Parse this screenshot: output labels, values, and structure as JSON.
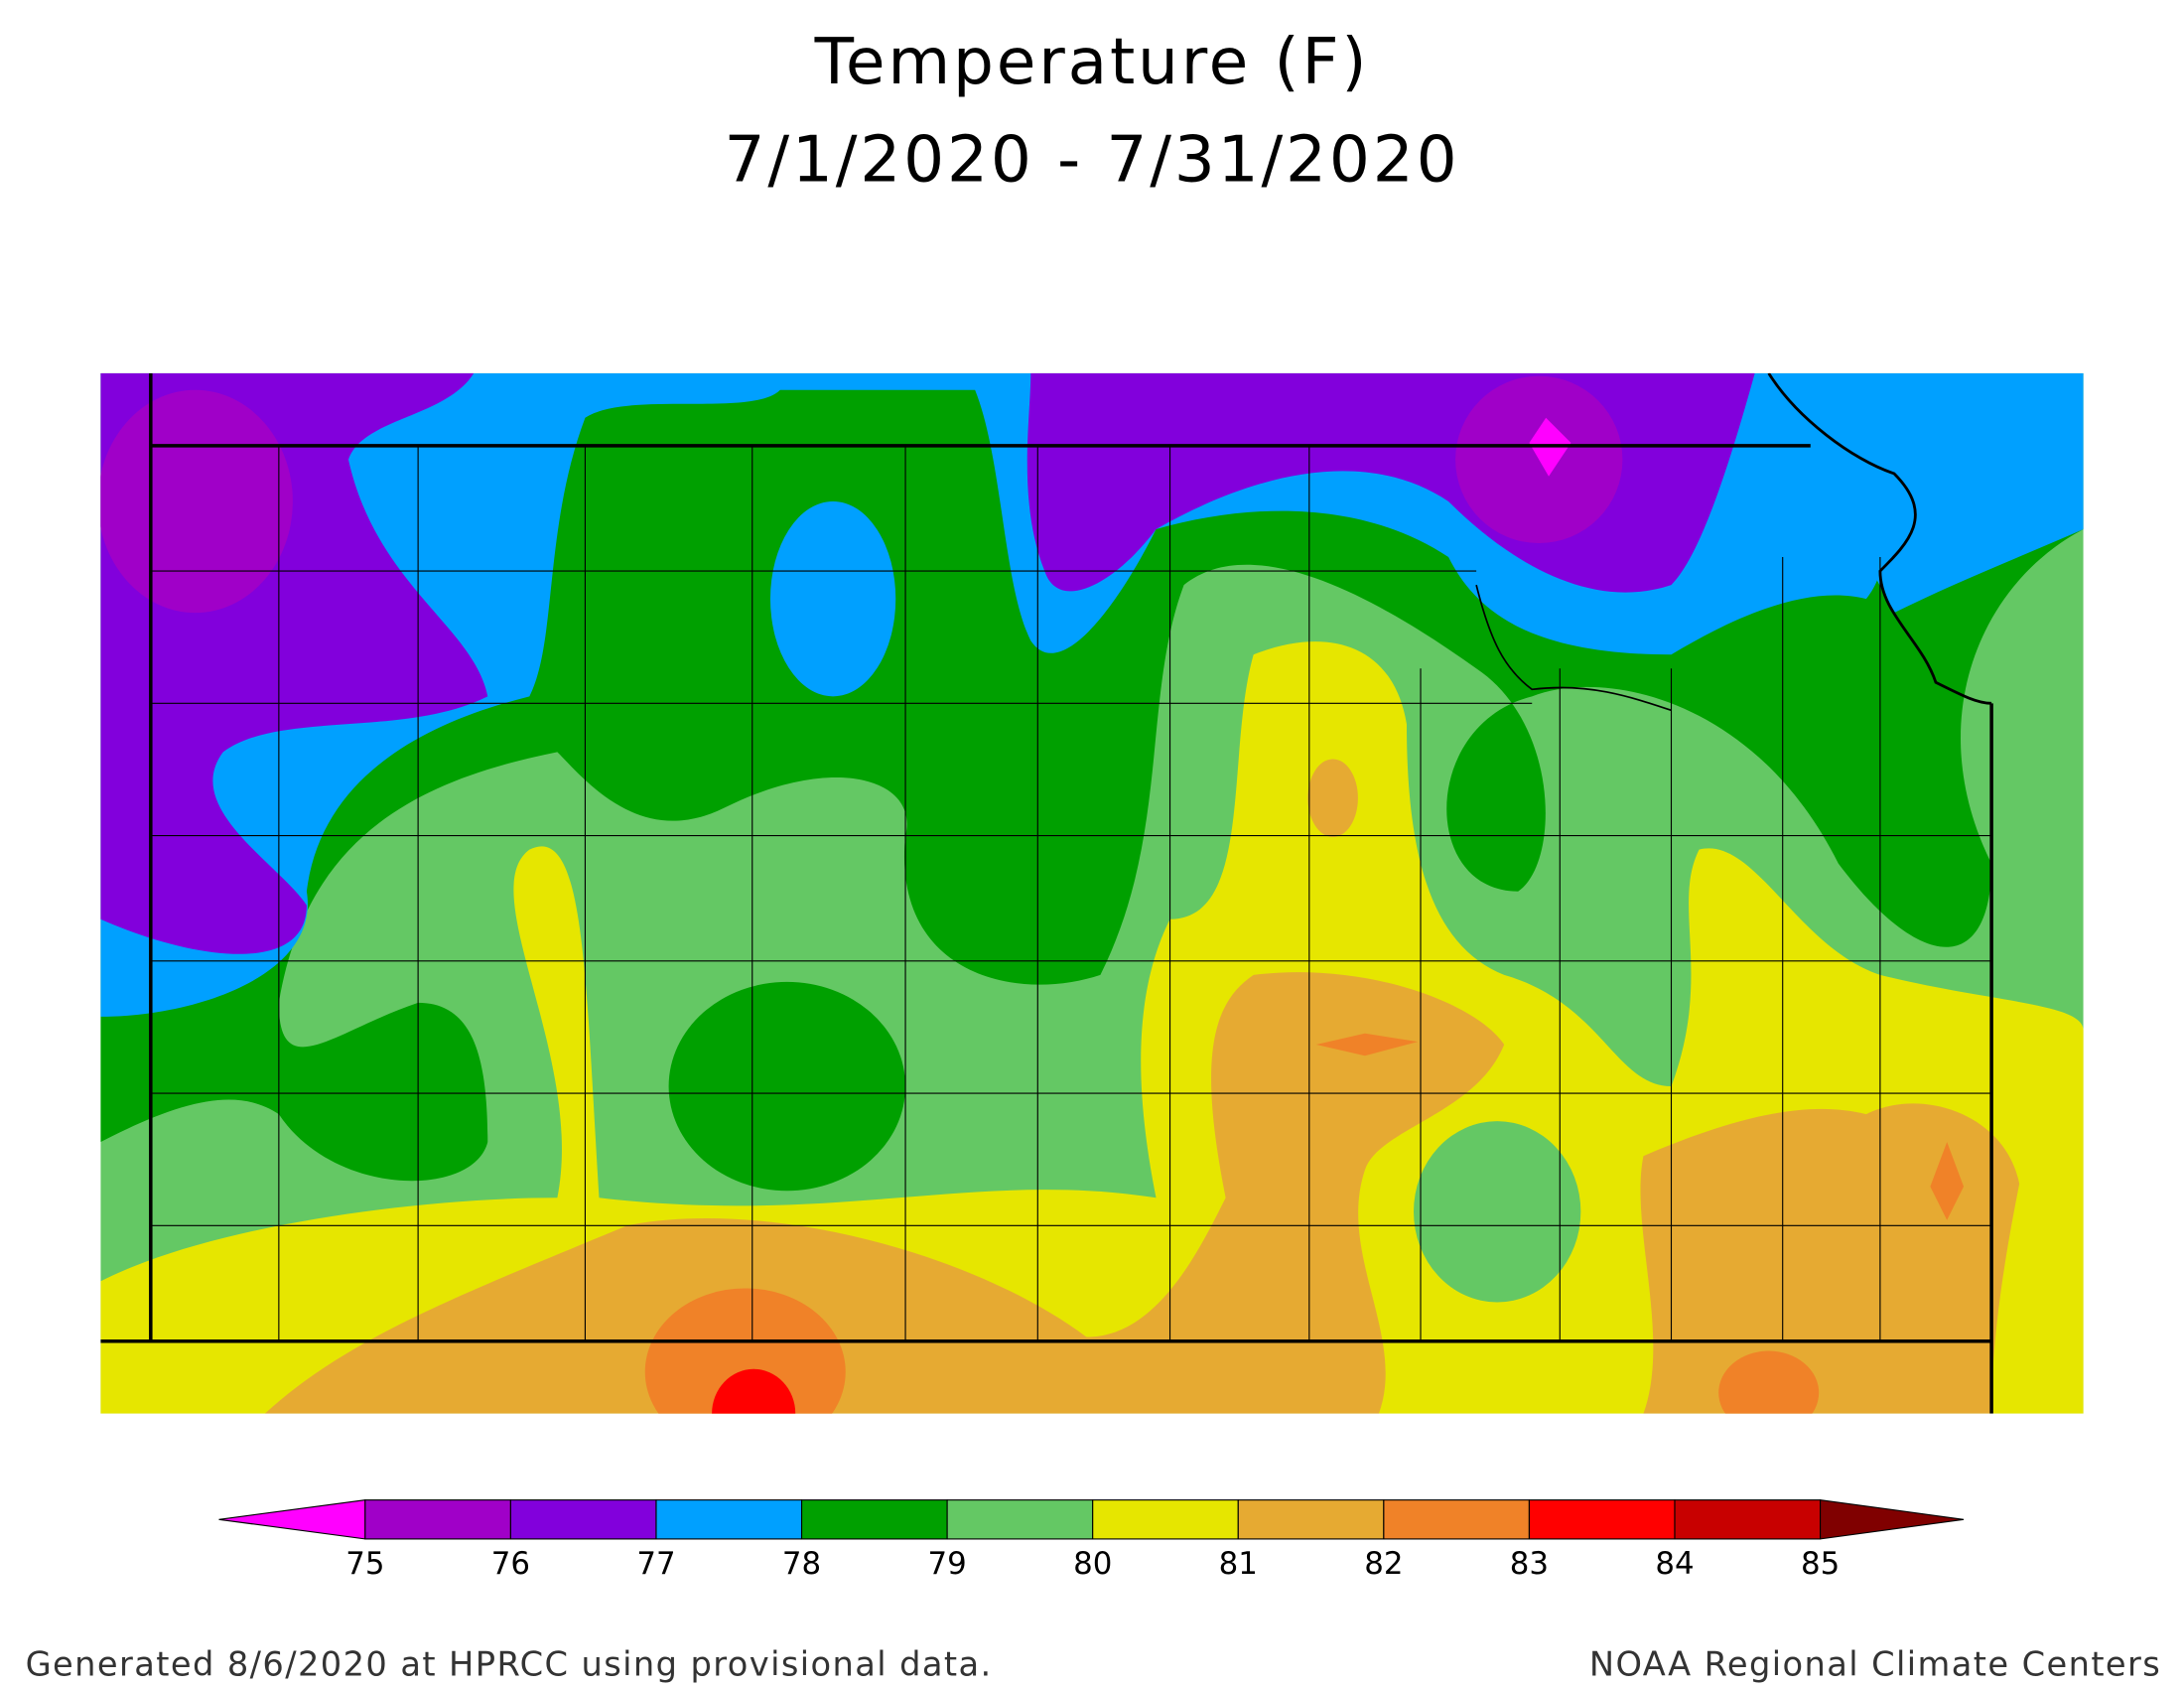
{
  "title": "Temperature (F)",
  "subtitle": "7/1/2020 - 7/31/2020",
  "legend": {
    "ticks": [
      75,
      76,
      77,
      78,
      79,
      80,
      81,
      82,
      83,
      84,
      85
    ],
    "under_color": "#ff00ff",
    "colors": [
      "#a000c8",
      "#8200dc",
      "#00a0ff",
      "#00a000",
      "#64c864",
      "#e6e600",
      "#e6aa32",
      "#f08228",
      "#ff0000",
      "#c80000"
    ],
    "over_color": "#800000"
  },
  "footer": {
    "left": "Generated 8/6/2020 at HPRCC using provisional data.",
    "right": "NOAA Regional Climate Centers"
  }
}
